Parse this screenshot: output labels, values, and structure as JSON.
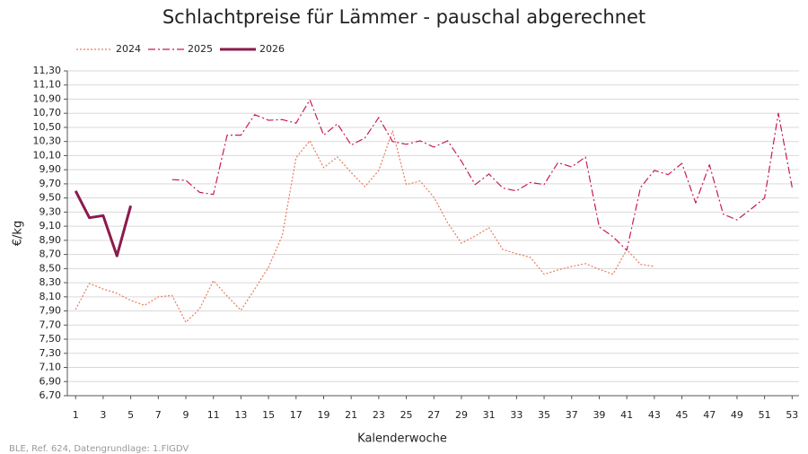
{
  "chart_data": {
    "type": "line",
    "title": "Schlachtpreise für Lämmer - pauschal abgerechnet",
    "x_label": "Kalenderwoche",
    "y_label": "€/kg",
    "source": "BLE, Ref. 624, Datengrundlage: 1.FlGDV",
    "x": [
      1,
      2,
      3,
      4,
      5,
      6,
      7,
      8,
      9,
      10,
      11,
      12,
      13,
      14,
      15,
      16,
      17,
      18,
      19,
      20,
      21,
      22,
      23,
      24,
      25,
      26,
      27,
      28,
      29,
      30,
      31,
      32,
      33,
      34,
      35,
      36,
      37,
      38,
      39,
      40,
      41,
      42,
      43,
      44,
      45,
      46,
      47,
      48,
      49,
      50,
      51,
      52,
      53
    ],
    "xlim": [
      0.4,
      53.5
    ],
    "xticks": [
      1,
      3,
      5,
      7,
      9,
      11,
      13,
      15,
      17,
      19,
      21,
      23,
      25,
      27,
      29,
      31,
      33,
      35,
      37,
      39,
      41,
      43,
      45,
      47,
      49,
      51,
      53
    ],
    "ylim": [
      6.7,
      11.3
    ],
    "yticks": [
      {
        "value": 6.7,
        "label": "6,70"
      },
      {
        "value": 6.9,
        "label": "6,90"
      },
      {
        "value": 7.1,
        "label": "7,10"
      },
      {
        "value": 7.3,
        "label": "7,30"
      },
      {
        "value": 7.5,
        "label": "7,50"
      },
      {
        "value": 7.7,
        "label": "7,70"
      },
      {
        "value": 7.9,
        "label": "7,90"
      },
      {
        "value": 8.1,
        "label": "8,10"
      },
      {
        "value": 8.3,
        "label": "8,30"
      },
      {
        "value": 8.5,
        "label": "8,50"
      },
      {
        "value": 8.7,
        "label": "8,70"
      },
      {
        "value": 8.9,
        "label": "8,90"
      },
      {
        "value": 9.1,
        "label": "9,10"
      },
      {
        "value": 9.3,
        "label": "9,30"
      },
      {
        "value": 9.5,
        "label": "9,50"
      },
      {
        "value": 9.7,
        "label": "9,70"
      },
      {
        "value": 9.9,
        "label": "9,90"
      },
      {
        "value": 10.1,
        "label": "10,10"
      },
      {
        "value": 10.3,
        "label": "10,30"
      },
      {
        "value": 10.5,
        "label": "10,50"
      },
      {
        "value": 10.7,
        "label": "10,70"
      },
      {
        "value": 10.9,
        "label": "10,90"
      },
      {
        "value": 11.1,
        "label": "11,10"
      },
      {
        "value": 11.3,
        "label": "11,30"
      }
    ],
    "grid": true,
    "legend": "top-left",
    "series": [
      {
        "name": "2024",
        "color": "#ec7a5c",
        "style": "dotted",
        "width": 1.2,
        "values": [
          7.92,
          8.29,
          8.21,
          8.15,
          8.05,
          7.98,
          8.1,
          8.12,
          7.74,
          7.93,
          8.33,
          8.11,
          7.91,
          8.21,
          8.52,
          8.97,
          10.07,
          10.31,
          9.93,
          10.08,
          9.86,
          9.66,
          9.89,
          10.45,
          9.69,
          9.74,
          9.51,
          9.15,
          8.86,
          8.96,
          9.08,
          8.77,
          8.71,
          8.66,
          8.42,
          8.48,
          8.53,
          8.57,
          8.49,
          8.42,
          8.77,
          8.56,
          8.53,
          null,
          null,
          null,
          null,
          null,
          null,
          null,
          null,
          null,
          null
        ]
      },
      {
        "name": "2025",
        "color": "#c8185c",
        "style": "dashdot",
        "width": 1.2,
        "values": [
          null,
          null,
          null,
          null,
          null,
          null,
          null,
          9.76,
          9.75,
          9.58,
          9.55,
          10.39,
          10.39,
          10.68,
          10.6,
          10.61,
          10.56,
          10.89,
          10.39,
          10.55,
          10.25,
          10.35,
          10.64,
          10.3,
          10.26,
          10.31,
          10.22,
          10.31,
          10.02,
          9.69,
          9.84,
          9.64,
          9.6,
          9.72,
          9.69,
          10.0,
          9.94,
          10.08,
          9.09,
          8.95,
          8.76,
          9.65,
          9.89,
          9.83,
          9.99,
          9.43,
          9.97,
          9.27,
          9.19,
          9.34,
          9.5,
          10.7,
          9.65
        ]
      },
      {
        "name": "2026",
        "color": "#8b1a4d",
        "style": "solid",
        "width": 3,
        "values": [
          9.6,
          9.22,
          9.25,
          8.68,
          9.39,
          null,
          null,
          null,
          null,
          null,
          null,
          null,
          null,
          null,
          null,
          null,
          null,
          null,
          null,
          null,
          null,
          null,
          null,
          null,
          null,
          null,
          null,
          null,
          null,
          null,
          null,
          null,
          null,
          null,
          null,
          null,
          null,
          null,
          null,
          null,
          null,
          null,
          null,
          null,
          null,
          null,
          null,
          null,
          null,
          null,
          null,
          null,
          null
        ]
      }
    ]
  }
}
